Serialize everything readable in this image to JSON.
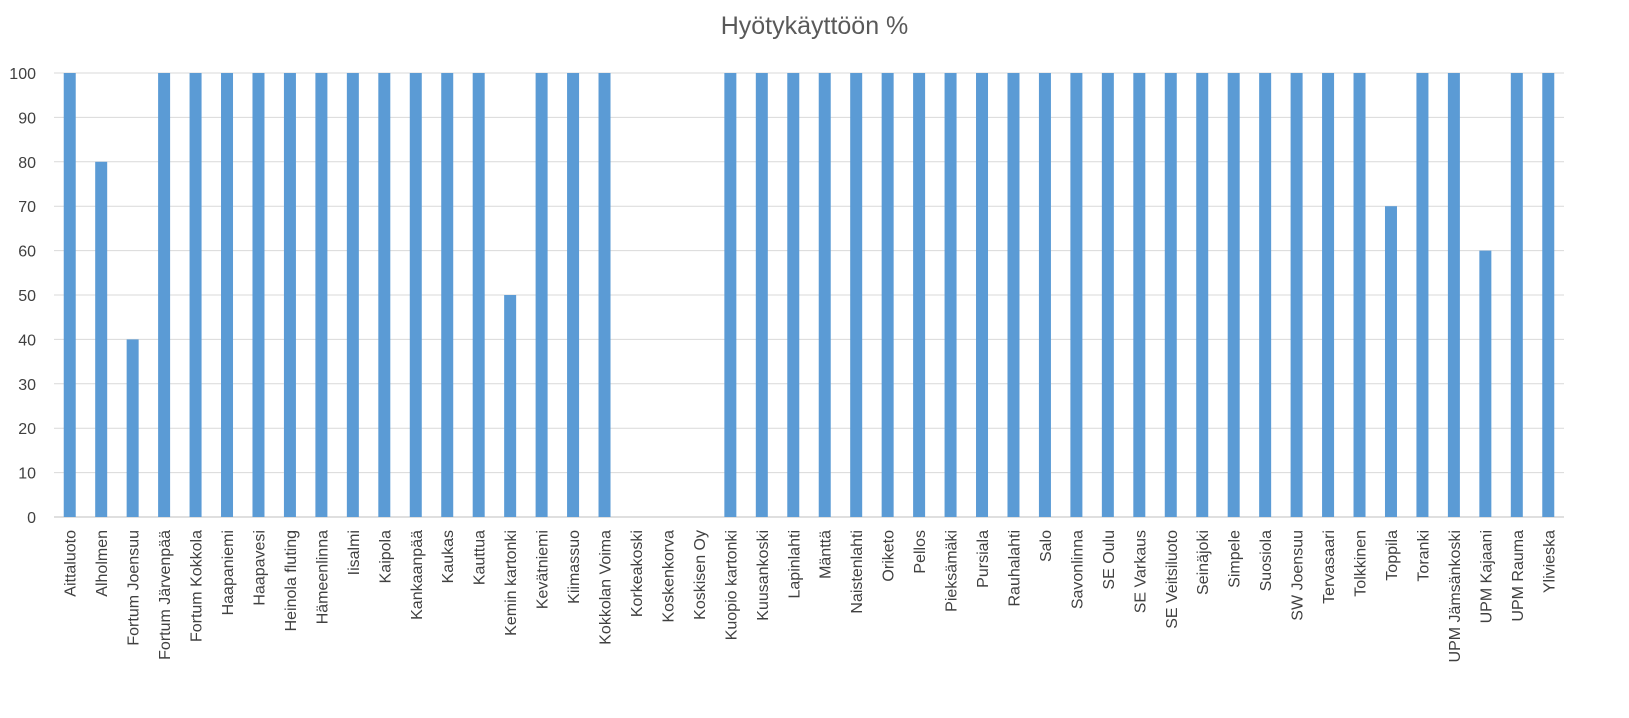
{
  "chart_data": {
    "type": "bar",
    "title": "Hyötykäyttöön %",
    "xlabel": "",
    "ylabel": "",
    "ylim": [
      0,
      100
    ],
    "yticks": [
      0,
      10,
      20,
      30,
      40,
      50,
      60,
      70,
      80,
      90,
      100
    ],
    "grid": true,
    "legend": "none",
    "bar_color": "#5b9bd5",
    "grid_color": "#d9d9d9",
    "categories": [
      "Aittaluoto",
      "Alholmen",
      "Fortum Joensuu",
      "Fortum Järvenpää",
      "Fortum Kokkola",
      "Haapaniemi",
      "Haapavesi",
      "Heinola fluting",
      "Hämeenlinna",
      "Iisalmi",
      "Kaipola",
      "Kankaanpää",
      "Kaukas",
      "Kauttua",
      "Kemin kartonki",
      "Kevätniemi",
      "Kiimassuo",
      "Kokkolan Voima",
      "Korkeakoski",
      "Koskenkorva",
      "Koskisen Oy",
      "Kuopio kartonki",
      "Kuusankoski",
      "Lapinlahti",
      "Mänttä",
      "Naistenlahti",
      "Oriketo",
      "Pellos",
      "Pieksämäki",
      "Pursiala",
      "Rauhalahti",
      "Salo",
      "Savonlinna",
      "SE Oulu",
      "SE Varkaus",
      "SE Veitsiluoto",
      "Seinäjoki",
      "Simpele",
      "Suosiola",
      "SW Joensuu",
      "Tervasaari",
      "Tolkkinen",
      "Toppila",
      "Toranki",
      "UPM Jämsänkoski",
      "UPM Kajaani",
      "UPM Rauma",
      "Ylivieska"
    ],
    "values": [
      100,
      80,
      40,
      100,
      100,
      100,
      100,
      100,
      100,
      100,
      100,
      100,
      100,
      100,
      50,
      100,
      100,
      100,
      0,
      0,
      0,
      100,
      100,
      100,
      100,
      100,
      100,
      100,
      100,
      100,
      100,
      100,
      100,
      100,
      100,
      100,
      100,
      100,
      100,
      100,
      100,
      100,
      70,
      100,
      100,
      60,
      100,
      100
    ]
  }
}
